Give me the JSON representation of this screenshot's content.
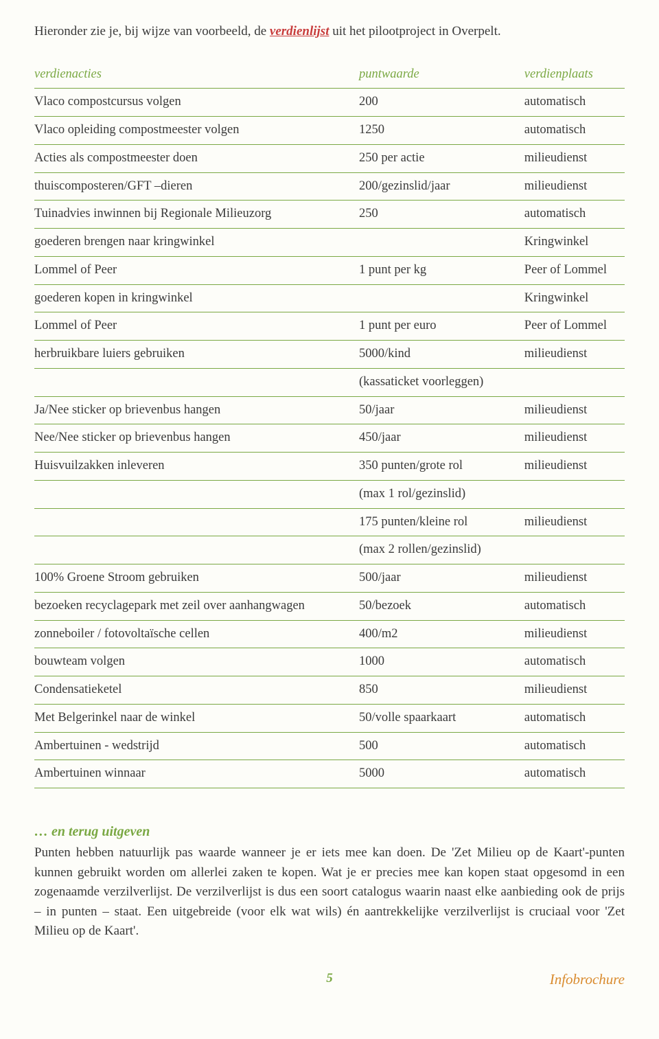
{
  "intro": {
    "pre": "Hieronder zie je, bij wijze van voorbeeld, de ",
    "highlight": "verdienlijst",
    "post": " uit het pilootproject in Overpelt."
  },
  "table": {
    "headers": [
      "verdienacties",
      "puntwaarde",
      "verdienplaats"
    ],
    "rows": [
      [
        "Vlaco compostcursus volgen",
        "200",
        "automatisch"
      ],
      [
        "Vlaco opleiding compostmeester volgen",
        "1250",
        "automatisch"
      ],
      [
        "Acties als compostmeester doen",
        "250 per actie",
        "milieudienst"
      ],
      [
        "thuiscomposteren/GFT –dieren",
        "200/gezinslid/jaar",
        "milieudienst"
      ],
      [
        "Tuinadvies inwinnen bij Regionale Milieuzorg",
        "250",
        "automatisch"
      ],
      [
        "goederen brengen naar kringwinkel",
        "",
        "Kringwinkel"
      ],
      [
        "Lommel of Peer",
        "1 punt per kg",
        "Peer of Lommel"
      ],
      [
        "goederen kopen in kringwinkel",
        "",
        "Kringwinkel"
      ],
      [
        "Lommel of Peer",
        "1 punt per euro",
        "Peer of Lommel"
      ],
      [
        "herbruikbare luiers gebruiken",
        "5000/kind",
        "milieudienst"
      ],
      [
        "",
        "(kassaticket voorleggen)",
        ""
      ],
      [
        "Ja/Nee sticker op brievenbus hangen",
        "50/jaar",
        "milieudienst"
      ],
      [
        "Nee/Nee sticker op brievenbus hangen",
        "450/jaar",
        "milieudienst"
      ],
      [
        "Huisvuilzakken inleveren",
        "350 punten/grote rol",
        "milieudienst"
      ],
      [
        "",
        "(max 1 rol/gezinslid)",
        ""
      ],
      [
        "",
        "175 punten/kleine rol",
        "milieudienst"
      ],
      [
        "",
        "(max 2 rollen/gezinslid)",
        ""
      ],
      [
        "100% Groene Stroom gebruiken",
        "500/jaar",
        "milieudienst"
      ],
      [
        "bezoeken recyclagepark met zeil over aanhangwagen",
        "50/bezoek",
        "automatisch"
      ],
      [
        "zonneboiler / fotovoltaïsche cellen",
        "400/m2",
        "milieudienst"
      ],
      [
        "bouwteam volgen",
        "1000",
        "automatisch"
      ],
      [
        "Condensatieketel",
        "850",
        "milieudienst"
      ],
      [
        "Met Belgerinkel naar de winkel",
        "50/volle spaarkaart",
        "automatisch"
      ],
      [
        "Ambertuinen - wedstrijd",
        "500",
        "automatisch"
      ],
      [
        "Ambertuinen winnaar",
        "5000",
        "automatisch"
      ]
    ]
  },
  "section": {
    "heading": "… en terug uitgeven",
    "body": "Punten hebben natuurlijk pas waarde wanneer je er iets mee kan doen. De 'Zet Milieu op de Kaart'-punten kunnen gebruikt worden om allerlei zaken te kopen. Wat je er precies mee kan kopen staat opgesomd in een zogenaamde verzilverlijst. De verzilverlijst is dus een soort catalogus waarin naast elke aanbieding ook de prijs – in punten – staat. Een uitgebreide (voor elk wat wils) én aantrekkelijke verzilverlijst is cruciaal voor 'Zet Milieu op de Kaart'."
  },
  "footer": {
    "page": "5",
    "label": "Infobrochure"
  }
}
